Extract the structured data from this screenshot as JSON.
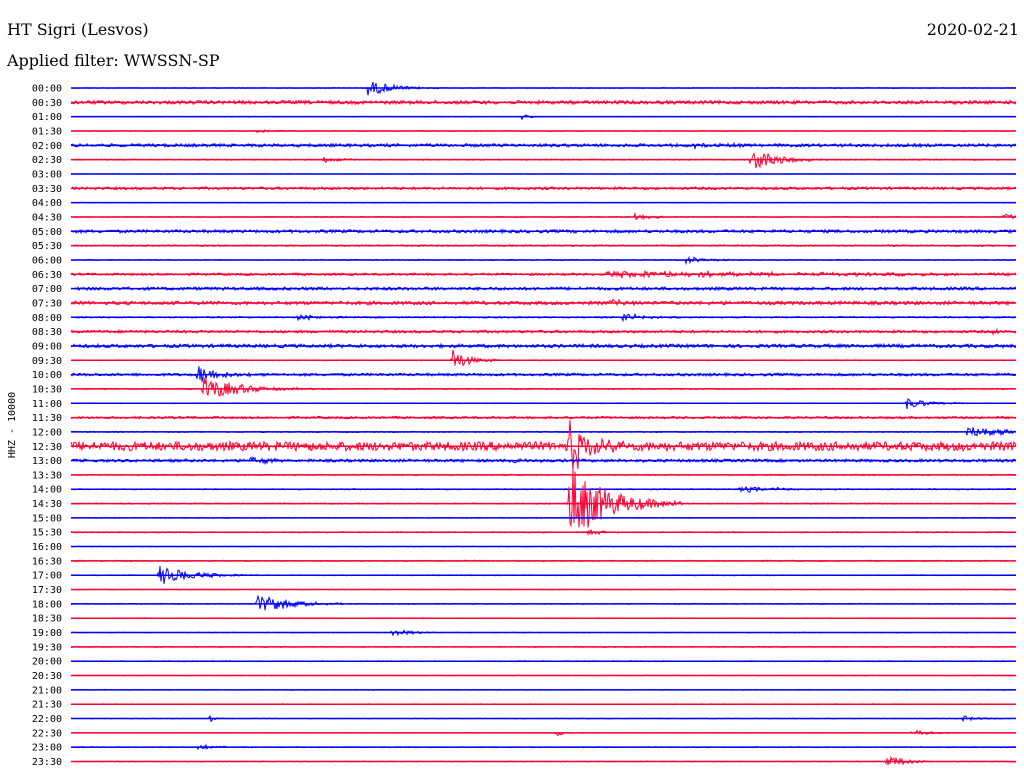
{
  "header": {
    "station": "HT Sigri (Lesvos)",
    "date": "2020-02-21",
    "filter": "Applied filter: WWSSN-SP"
  },
  "colors": {
    "blue": "#0000ff",
    "red": "#ff0033"
  },
  "chart_data": {
    "type": "line",
    "title": "HT Sigri (Lesvos)",
    "subtitle": "Applied filter: WWSSN-SP",
    "ylabel": "HHZ - 10000",
    "xlabel": "",
    "x_range_minutes": [
      0,
      30
    ],
    "traces": [
      {
        "label": "00:00",
        "color": "blue",
        "noise": 0.4,
        "events": [
          {
            "t": 9.4,
            "amp": 8,
            "dur": 0.8
          }
        ]
      },
      {
        "label": "00:30",
        "color": "red",
        "noise": 1.8,
        "events": []
      },
      {
        "label": "01:00",
        "color": "blue",
        "noise": 0.3,
        "events": [
          {
            "t": 14.3,
            "amp": 3,
            "dur": 0.3
          }
        ]
      },
      {
        "label": "01:30",
        "color": "red",
        "noise": 0.4,
        "events": [
          {
            "t": 5.9,
            "amp": 2,
            "dur": 0.6
          }
        ]
      },
      {
        "label": "02:00",
        "color": "blue",
        "noise": 1.6,
        "events": [
          {
            "t": 19.8,
            "amp": 2,
            "dur": 1.0
          }
        ]
      },
      {
        "label": "02:30",
        "color": "red",
        "noise": 0.6,
        "events": [
          {
            "t": 8.0,
            "amp": 3,
            "dur": 0.5
          },
          {
            "t": 21.6,
            "amp": 12,
            "dur": 0.8
          }
        ]
      },
      {
        "label": "03:00",
        "color": "blue",
        "noise": 0.3,
        "events": []
      },
      {
        "label": "03:30",
        "color": "red",
        "noise": 1.4,
        "events": []
      },
      {
        "label": "04:00",
        "color": "blue",
        "noise": 0.3,
        "events": []
      },
      {
        "label": "04:30",
        "color": "red",
        "noise": 0.5,
        "events": [
          {
            "t": 17.9,
            "amp": 3,
            "dur": 0.6
          },
          {
            "t": 29.6,
            "amp": 4,
            "dur": 0.5
          }
        ]
      },
      {
        "label": "05:00",
        "color": "blue",
        "noise": 1.6,
        "events": []
      },
      {
        "label": "05:30",
        "color": "red",
        "noise": 0.8,
        "events": []
      },
      {
        "label": "06:00",
        "color": "blue",
        "noise": 0.5,
        "events": [
          {
            "t": 19.5,
            "amp": 4,
            "dur": 0.6
          }
        ]
      },
      {
        "label": "06:30",
        "color": "red",
        "noise": 1.2,
        "events": [
          {
            "t": 17.0,
            "amp": 3,
            "dur": 8.0
          }
        ]
      },
      {
        "label": "07:00",
        "color": "blue",
        "noise": 1.6,
        "events": []
      },
      {
        "label": "07:30",
        "color": "red",
        "noise": 1.8,
        "events": [
          {
            "t": 17.1,
            "amp": 3,
            "dur": 0.6
          }
        ]
      },
      {
        "label": "08:00",
        "color": "blue",
        "noise": 0.8,
        "events": [
          {
            "t": 7.2,
            "amp": 3,
            "dur": 0.6
          },
          {
            "t": 17.5,
            "amp": 4,
            "dur": 0.7
          }
        ]
      },
      {
        "label": "08:30",
        "color": "red",
        "noise": 1.4,
        "events": [
          {
            "t": 29.3,
            "amp": 6,
            "dur": 0.1
          }
        ]
      },
      {
        "label": "09:00",
        "color": "blue",
        "noise": 1.8,
        "events": []
      },
      {
        "label": "09:30",
        "color": "red",
        "noise": 0.5,
        "events": [
          {
            "t": 12.1,
            "amp": 12,
            "dur": 0.5
          }
        ]
      },
      {
        "label": "10:00",
        "color": "blue",
        "noise": 1.4,
        "events": [
          {
            "t": 4.0,
            "amp": 10,
            "dur": 0.7
          }
        ]
      },
      {
        "label": "10:30",
        "color": "red",
        "noise": 0.6,
        "events": [
          {
            "t": 4.2,
            "amp": 12,
            "dur": 1.2
          }
        ]
      },
      {
        "label": "11:00",
        "color": "blue",
        "noise": 0.4,
        "events": [
          {
            "t": 26.5,
            "amp": 6,
            "dur": 0.7
          }
        ]
      },
      {
        "label": "11:30",
        "color": "red",
        "noise": 1.2,
        "events": []
      },
      {
        "label": "12:00",
        "color": "blue",
        "noise": 0.6,
        "events": [
          {
            "t": 28.4,
            "amp": 5,
            "dur": 3.0
          }
        ]
      },
      {
        "label": "12:30",
        "color": "red",
        "noise": 4.5,
        "events": [
          {
            "t": 15.8,
            "amp": 30,
            "dur": 0.6
          }
        ]
      },
      {
        "label": "13:00",
        "color": "blue",
        "noise": 1.5,
        "events": [
          {
            "t": 5.6,
            "amp": 4,
            "dur": 0.6
          },
          {
            "t": 14.0,
            "amp": 3,
            "dur": 0.6
          }
        ]
      },
      {
        "label": "13:30",
        "color": "red",
        "noise": 0.6,
        "events": []
      },
      {
        "label": "14:00",
        "color": "blue",
        "noise": 0.6,
        "events": [
          {
            "t": 21.2,
            "amp": 3,
            "dur": 1.5
          }
        ]
      },
      {
        "label": "14:30",
        "color": "red",
        "noise": 0.6,
        "events": [
          {
            "t": 15.8,
            "amp": 40,
            "dur": 1.2
          }
        ]
      },
      {
        "label": "15:00",
        "color": "blue",
        "noise": 0.4,
        "events": []
      },
      {
        "label": "15:30",
        "color": "red",
        "noise": 0.6,
        "events": [
          {
            "t": 16.4,
            "amp": 3,
            "dur": 0.5
          }
        ]
      },
      {
        "label": "16:00",
        "color": "blue",
        "noise": 0.3,
        "events": []
      },
      {
        "label": "16:30",
        "color": "red",
        "noise": 0.6,
        "events": []
      },
      {
        "label": "17:00",
        "color": "blue",
        "noise": 0.5,
        "events": [
          {
            "t": 2.8,
            "amp": 10,
            "dur": 1.0
          }
        ]
      },
      {
        "label": "17:30",
        "color": "red",
        "noise": 0.3,
        "events": []
      },
      {
        "label": "18:00",
        "color": "blue",
        "noise": 0.5,
        "events": [
          {
            "t": 5.9,
            "amp": 10,
            "dur": 1.0
          }
        ]
      },
      {
        "label": "18:30",
        "color": "red",
        "noise": 0.4,
        "events": []
      },
      {
        "label": "19:00",
        "color": "blue",
        "noise": 0.3,
        "events": [
          {
            "t": 10.2,
            "amp": 4,
            "dur": 0.6
          }
        ]
      },
      {
        "label": "19:30",
        "color": "red",
        "noise": 0.5,
        "events": []
      },
      {
        "label": "20:00",
        "color": "blue",
        "noise": 0.5,
        "events": []
      },
      {
        "label": "20:30",
        "color": "red",
        "noise": 0.3,
        "events": []
      },
      {
        "label": "21:00",
        "color": "blue",
        "noise": 0.4,
        "events": []
      },
      {
        "label": "21:30",
        "color": "red",
        "noise": 0.4,
        "events": []
      },
      {
        "label": "22:00",
        "color": "blue",
        "noise": 0.3,
        "events": [
          {
            "t": 4.4,
            "amp": 4,
            "dur": 0.2
          },
          {
            "t": 28.3,
            "amp": 3,
            "dur": 0.5
          }
        ]
      },
      {
        "label": "22:30",
        "color": "red",
        "noise": 0.3,
        "events": [
          {
            "t": 15.4,
            "amp": 3,
            "dur": 0.3
          },
          {
            "t": 26.7,
            "amp": 3,
            "dur": 0.6
          }
        ]
      },
      {
        "label": "23:00",
        "color": "blue",
        "noise": 0.5,
        "events": [
          {
            "t": 4.0,
            "amp": 3,
            "dur": 0.6
          }
        ]
      },
      {
        "label": "23:30",
        "color": "red",
        "noise": 0.4,
        "events": [
          {
            "t": 25.9,
            "amp": 7,
            "dur": 0.6
          }
        ]
      }
    ]
  }
}
